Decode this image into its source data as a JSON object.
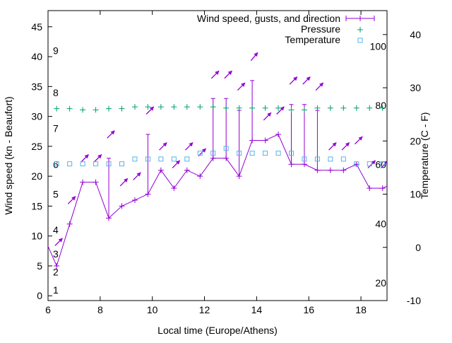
{
  "chart_data": {
    "type": "line",
    "title": "",
    "xlabel": "Local time (Europe/Athens)",
    "ylabel": "Wind speed (kn - Beaufort)",
    "y2label": "Temperature (C - F)",
    "xlim": [
      6,
      19
    ],
    "ylim": [
      -0.8,
      47.7
    ],
    "y2lim": [
      -10,
      44.5
    ],
    "x_ticks": [
      "6",
      "8",
      "10",
      "12",
      "14",
      "16",
      "18"
    ],
    "y_ticks": [
      "0",
      "5",
      "10",
      "15",
      "20",
      "25",
      "30",
      "35",
      "40",
      "45"
    ],
    "y2_ticks": [
      "-10",
      "0",
      "10",
      "20",
      "30",
      "40"
    ],
    "fahrenheit_labels": [
      "20",
      "40",
      "60",
      "80",
      "100"
    ],
    "beaufort_labels": [
      {
        "label": "1",
        "knots": 1
      },
      {
        "label": "2",
        "knots": 4
      },
      {
        "label": "3",
        "knots": 7
      },
      {
        "label": "4",
        "knots": 11
      },
      {
        "label": "5",
        "knots": 17
      },
      {
        "label": "6",
        "knots": 22
      },
      {
        "label": "7",
        "knots": 28
      },
      {
        "label": "8",
        "knots": 34
      },
      {
        "label": "9",
        "knots": 41
      }
    ],
    "legend": {
      "position": "top-right",
      "entries": [
        "Wind speed, gusts, and direction",
        "Pressure",
        "Temperature"
      ]
    },
    "colors": {
      "wind": "#9400d3",
      "pressure": "#009e73",
      "temperature": "#56b4e9"
    },
    "x": [
      5.83,
      6.33,
      6.83,
      7.33,
      7.83,
      8.33,
      8.83,
      9.33,
      9.83,
      10.33,
      10.83,
      11.33,
      11.83,
      12.33,
      12.83,
      13.33,
      13.83,
      14.33,
      14.83,
      15.33,
      15.83,
      16.33,
      16.83,
      17.33,
      17.83,
      18.33,
      18.83,
      19.33
    ],
    "series": [
      {
        "name": "Wind speed",
        "axis": "y",
        "values": [
          10,
          5,
          12,
          19,
          19,
          13,
          15,
          16,
          17,
          21,
          18,
          21,
          20,
          23,
          23,
          20,
          26,
          26,
          27,
          22,
          22,
          21,
          21,
          21,
          22,
          18,
          18,
          19
        ]
      },
      {
        "name": "Gusts",
        "axis": "y",
        "values": [
          null,
          null,
          null,
          null,
          null,
          23,
          null,
          null,
          27,
          null,
          null,
          null,
          null,
          33,
          33,
          31,
          36,
          null,
          null,
          32,
          32,
          31,
          null,
          null,
          null,
          null,
          null,
          null
        ]
      },
      {
        "name": "Wind direction (deg, from)",
        "axis": "y",
        "values": [
          null,
          225,
          225,
          225,
          225,
          225,
          225,
          225,
          225,
          225,
          225,
          225,
          225,
          225,
          225,
          225,
          220,
          225,
          225,
          225,
          225,
          225,
          225,
          225,
          225,
          225,
          225,
          null
        ]
      },
      {
        "name": "Pressure",
        "axis": "y",
        "values": [
          null,
          31.3,
          31.3,
          31.1,
          31.1,
          31.3,
          31.3,
          31.6,
          31.6,
          31.6,
          31.6,
          31.6,
          31.6,
          31.6,
          31.4,
          31.4,
          31.4,
          31.4,
          31.4,
          31.1,
          31.1,
          31.4,
          31.4,
          31.4,
          31.4,
          31.4,
          31.4,
          null
        ]
      },
      {
        "name": "Temperature",
        "axis": "y2",
        "values": [
          null,
          15.7,
          15.7,
          15.7,
          15.7,
          15.7,
          15.7,
          16.6,
          16.6,
          16.6,
          16.6,
          16.6,
          17.7,
          17.7,
          18.6,
          17.7,
          17.7,
          17.7,
          17.7,
          17.7,
          16.6,
          16.6,
          16.6,
          16.6,
          15.7,
          15.7,
          15.7,
          null
        ]
      }
    ]
  }
}
